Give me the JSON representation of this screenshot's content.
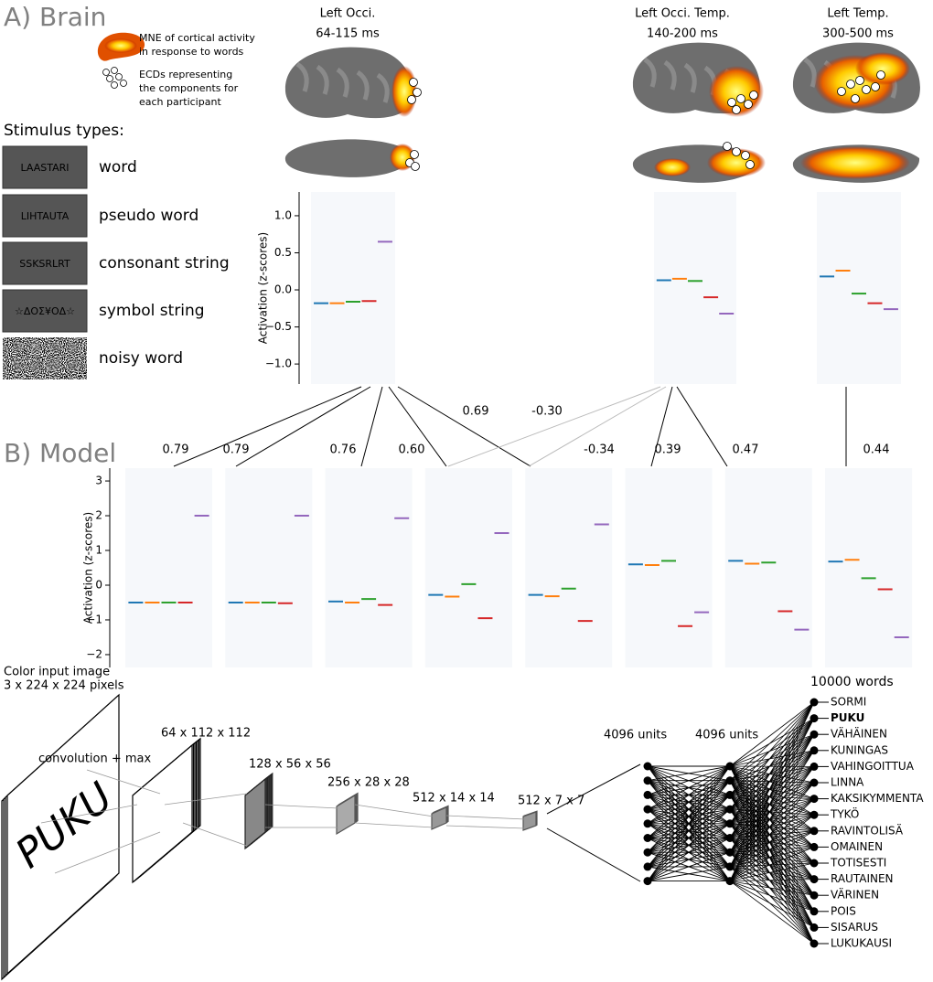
{
  "sections": {
    "brain": "A) Brain",
    "model": "B) Model"
  },
  "brain_legend": {
    "mne": [
      "MNE of cortical activity",
      "in response to words"
    ],
    "ecd": [
      "ECDs representing",
      "the components for",
      "each participant"
    ]
  },
  "stimulus_types": {
    "title": "Stimulus types:",
    "names": [
      "word",
      "pseudo word",
      "consonant string",
      "symbol string",
      "noisy word"
    ],
    "colors": [
      "#1f77b4",
      "#ff7f0e",
      "#2ca02c",
      "#d62728",
      "#9467bd"
    ],
    "examples": [
      "LAASTARI",
      "LIHTAUTA",
      "SSKSRLRT",
      "☆ΔOΣ¥OΔ☆"
    ]
  },
  "chart_data": [
    {
      "type": "strip",
      "title": "Left Occi.",
      "subtitle": "64-115 ms",
      "ylabel": "Activation (z-scores)",
      "ylim": [
        -1.27,
        1.32
      ],
      "yticks": [
        {
          "value": -1,
          "label": "−1.0"
        },
        {
          "value": -0.5,
          "label": "−0.5"
        },
        {
          "value": 0,
          "label": "0.0"
        },
        0.5,
        {
          "value": 1,
          "label": "1.0"
        }
      ],
      "values": [
        -0.18,
        -0.18,
        -0.16,
        -0.15,
        0.65
      ]
    },
    {
      "type": "strip",
      "title": "Left Occi. Temp.",
      "subtitle": "140-200 ms",
      "ylim": [
        -1.27,
        1.32
      ],
      "values": [
        0.13,
        0.15,
        0.12,
        -0.1,
        -0.32
      ]
    },
    {
      "type": "strip",
      "title": "Left Temp.",
      "subtitle": "300-500 ms",
      "ylim": [
        -1.27,
        1.32
      ],
      "values": [
        0.18,
        0.26,
        -0.05,
        -0.18,
        -0.26
      ]
    },
    {
      "type": "strip",
      "ylabel": "Activation (z-scores)",
      "ylim": [
        -2.37,
        3.37
      ],
      "yticks": [
        {
          "value": -2,
          "label": "−2"
        },
        {
          "value": -1,
          "label": "−1"
        },
        0,
        1,
        2,
        3
      ],
      "values": [
        -0.5,
        -0.5,
        -0.5,
        -0.5,
        2.0
      ]
    },
    {
      "type": "strip",
      "ylim": [
        -2.37,
        3.37
      ],
      "values": [
        -0.5,
        -0.5,
        -0.5,
        -0.52,
        2.0
      ]
    },
    {
      "type": "strip",
      "ylim": [
        -2.37,
        3.37
      ],
      "values": [
        -0.47,
        -0.5,
        -0.4,
        -0.57,
        1.93
      ]
    },
    {
      "type": "strip",
      "ylim": [
        -2.37,
        3.37
      ],
      "values": [
        -0.28,
        -0.33,
        0.03,
        -0.95,
        1.5
      ]
    },
    {
      "type": "strip",
      "ylim": [
        -2.37,
        3.37
      ],
      "values": [
        -0.28,
        -0.32,
        -0.1,
        -1.03,
        1.75
      ]
    },
    {
      "type": "strip",
      "ylim": [
        -2.37,
        3.37
      ],
      "values": [
        0.6,
        0.58,
        0.7,
        -1.18,
        -0.78
      ]
    },
    {
      "type": "strip",
      "ylim": [
        -2.37,
        3.37
      ],
      "values": [
        0.7,
        0.62,
        0.65,
        -0.75,
        -1.28
      ]
    },
    {
      "type": "strip",
      "ylim": [
        -2.37,
        3.37
      ],
      "values": [
        0.68,
        0.73,
        0.2,
        -0.12,
        -1.5
      ]
    }
  ],
  "correlations": [
    0.79,
    0.79,
    0.76,
    {
      "value": 0.6,
      "label": "0.60"
    },
    0.69,
    {
      "value": -0.3,
      "label": "-0.30"
    },
    -0.34,
    0.39,
    0.47,
    0.44
  ],
  "network": {
    "input": [
      "Color input image",
      "3 x 224 x 224 pixels"
    ],
    "input_word": "PUKU",
    "operation": "convolution + max",
    "layers": [
      "64 x 112 x 112",
      "128 x 56 x 56",
      "256 x 28 x 28",
      "512 x 14 x 14",
      "512 x 7 x 7",
      "4096 units",
      "4096 units"
    ],
    "output": "10000 words",
    "words": [
      {
        "text": "SORMI"
      },
      {
        "text": "PUKU",
        "color": "#e8000b"
      },
      {
        "text": "VÄHÄINEN"
      },
      {
        "text": "KUNINGAS"
      },
      {
        "text": "VAHINGOITTUA"
      },
      {
        "text": "LINNA"
      },
      {
        "text": "KAKSIKYMMENTA"
      },
      {
        "text": "TYKÖ"
      },
      {
        "text": "RAVINTOLISÄ"
      },
      {
        "text": "OMAINEN"
      },
      {
        "text": "TOTISESTI"
      },
      {
        "text": "RAUTAINEN"
      },
      {
        "text": "VÄRINEN"
      },
      {
        "text": "POIS"
      },
      {
        "text": "SISARUS"
      },
      {
        "text": "LUKUKAUSI"
      }
    ]
  }
}
